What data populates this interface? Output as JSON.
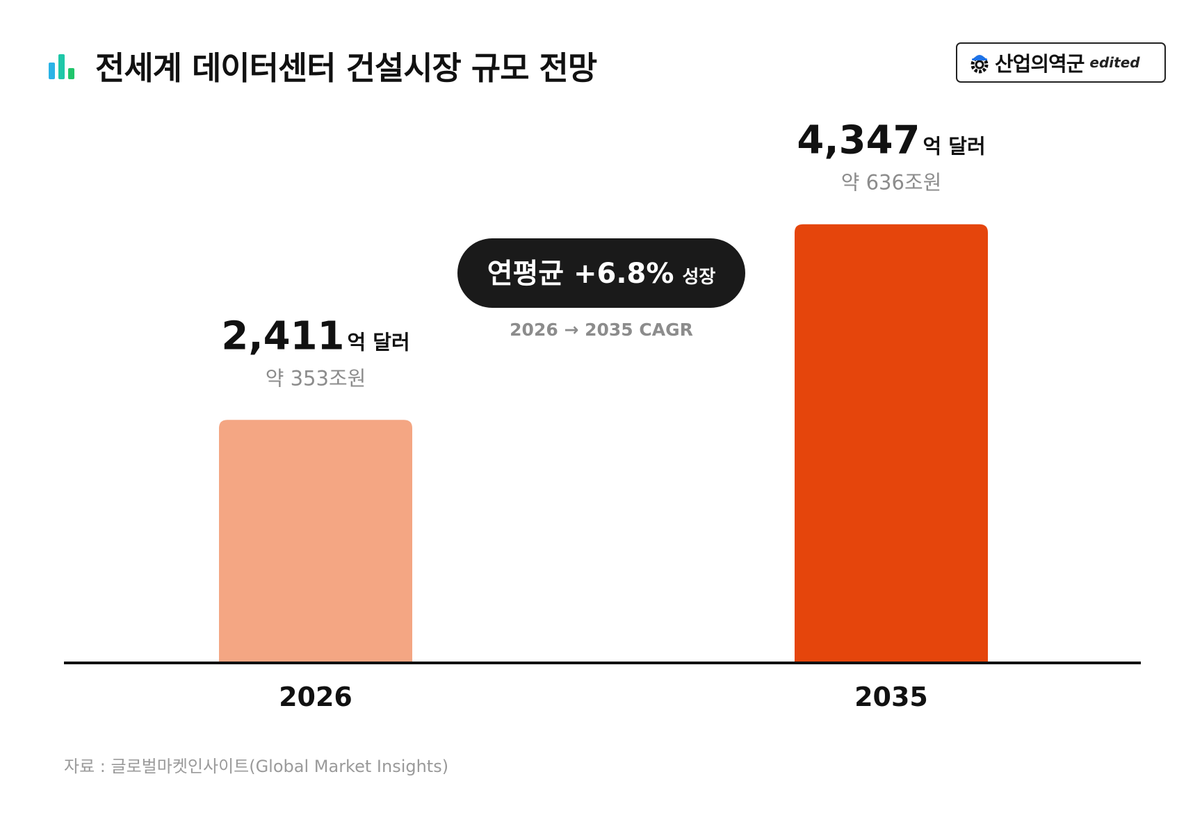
{
  "header": {
    "title": "전세계 데이터센터 건설시장 규모 전망",
    "icon": "bar-chart-icon"
  },
  "brand": {
    "name": "산업의역군",
    "tag": "edited",
    "icon": "hardhat-gear-icon"
  },
  "chart_data": {
    "type": "bar",
    "categories": [
      "2026",
      "2035"
    ],
    "values": [
      2411,
      4347
    ],
    "value_labels": [
      "2,411",
      "4,347"
    ],
    "unit_label": "억 달러",
    "sub_labels": [
      "약 353조원",
      "약 636조원"
    ],
    "bar_colors": [
      "#f4a683",
      "#e5450c"
    ],
    "ylim": [
      0,
      4400
    ],
    "grid": false,
    "callout": {
      "main": "연평균 +6.8%",
      "suffix": "성장",
      "caption": "2026 → 2035 CAGR"
    }
  },
  "source": "자료 : 글로벌마켓인사이트(Global Market Insights)",
  "colors": {
    "icon_bars": [
      "#2ab3e6",
      "#1fc7a8",
      "#20c56b"
    ],
    "callout_bg": "#1a1a1a",
    "axis": "#111111",
    "muted_text": "#8c8c8c"
  }
}
